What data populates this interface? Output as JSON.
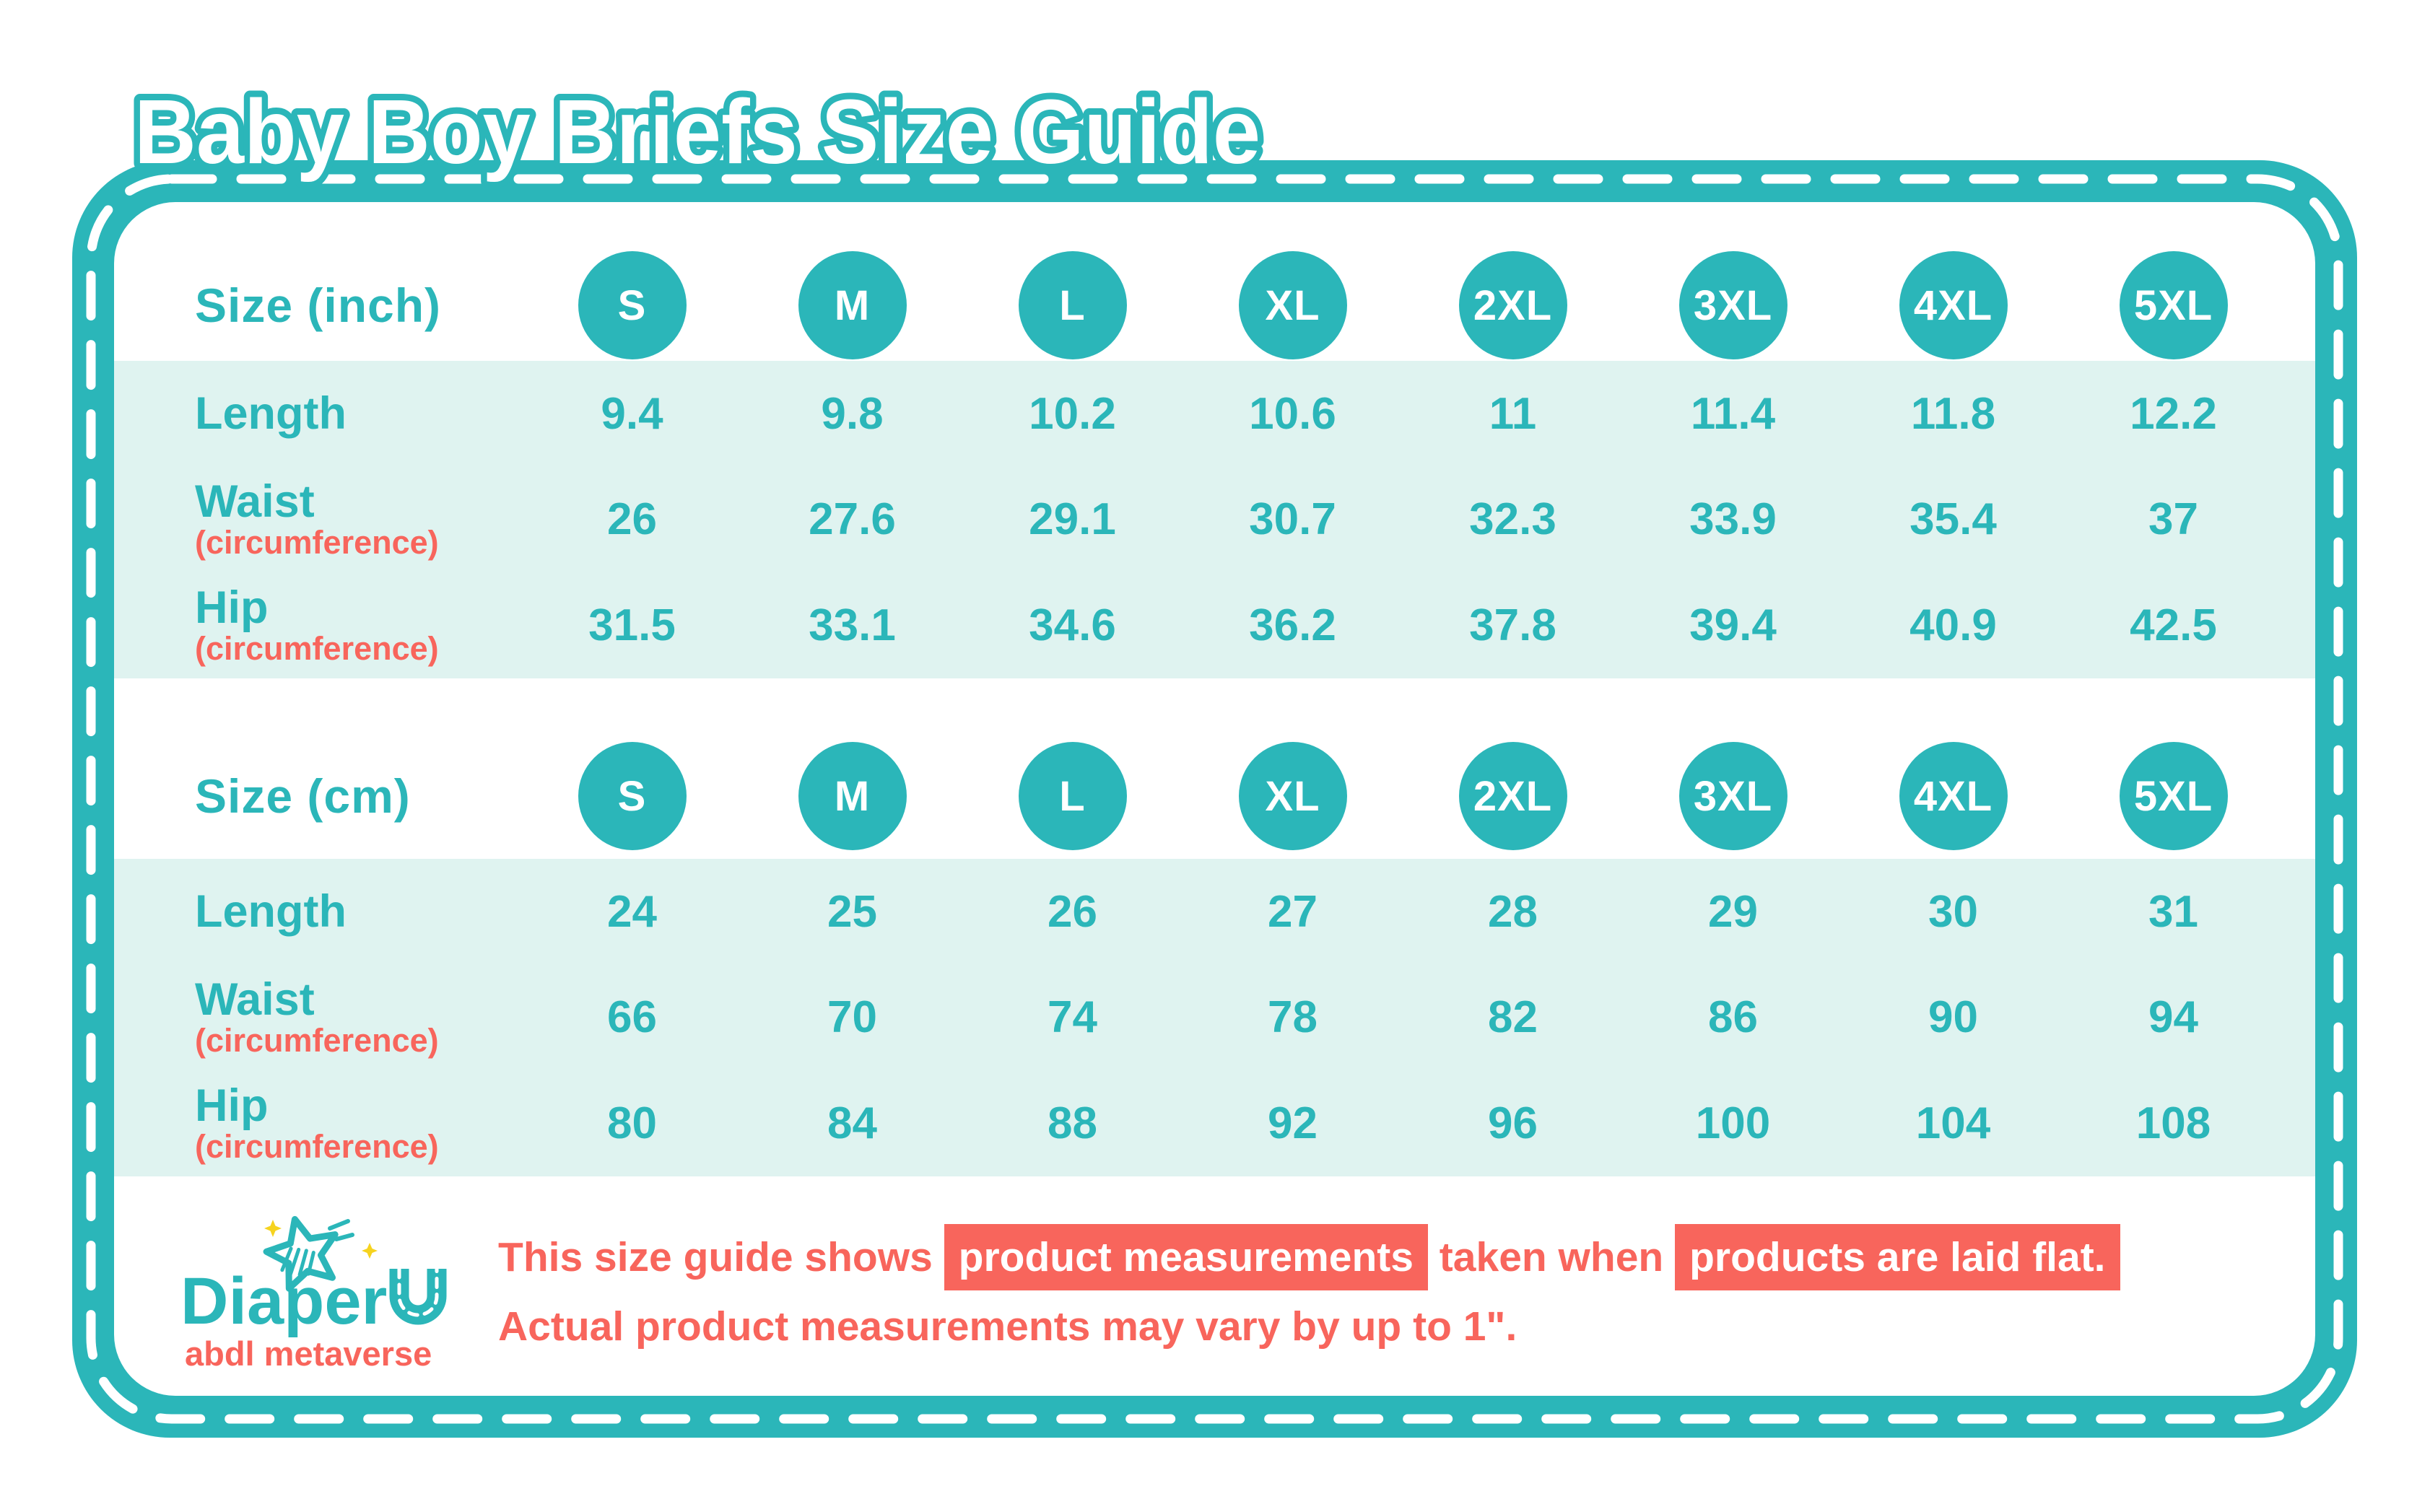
{
  "title": "Baby Boy Briefs Size Guide",
  "colors": {
    "teal": "#2bb6b9",
    "mint": "#dff3f0",
    "coral": "#f8655c",
    "yellow": "#f6d31f",
    "white": "#ffffff"
  },
  "chart_data": [
    {
      "type": "table",
      "unit_label": "Size (inch)",
      "sizes": [
        "S",
        "M",
        "L",
        "XL",
        "2XL",
        "3XL",
        "4XL",
        "5XL"
      ],
      "rows": [
        {
          "label": "Length",
          "sublabel": "",
          "values": [
            "9.4",
            "9.8",
            "10.2",
            "10.6",
            "11",
            "11.4",
            "11.8",
            "12.2"
          ]
        },
        {
          "label": "Waist",
          "sublabel": "(circumference)",
          "values": [
            "26",
            "27.6",
            "29.1",
            "30.7",
            "32.3",
            "33.9",
            "35.4",
            "37"
          ]
        },
        {
          "label": "Hip",
          "sublabel": "(circumference)",
          "values": [
            "31.5",
            "33.1",
            "34.6",
            "36.2",
            "37.8",
            "39.4",
            "40.9",
            "42.5"
          ]
        }
      ]
    },
    {
      "type": "table",
      "unit_label": "Size (cm)",
      "sizes": [
        "S",
        "M",
        "L",
        "XL",
        "2XL",
        "3XL",
        "4XL",
        "5XL"
      ],
      "rows": [
        {
          "label": "Length",
          "sublabel": "",
          "values": [
            "24",
            "25",
            "26",
            "27",
            "28",
            "29",
            "30",
            "31"
          ]
        },
        {
          "label": "Waist",
          "sublabel": "(circumference)",
          "values": [
            "66",
            "70",
            "74",
            "78",
            "82",
            "86",
            "90",
            "94"
          ]
        },
        {
          "label": "Hip",
          "sublabel": "(circumference)",
          "values": [
            "80",
            "84",
            "88",
            "92",
            "96",
            "100",
            "104",
            "108"
          ]
        }
      ]
    }
  ],
  "logo": {
    "brand": "Diaper",
    "brand_suffix": "U",
    "tagline": "abdl metaverse"
  },
  "disclaimer": {
    "lines": [
      {
        "segments": [
          {
            "text": "This size guide shows ",
            "highlight": false
          },
          {
            "text": "product measurements",
            "highlight": true
          },
          {
            "text": " taken when ",
            "highlight": false
          },
          {
            "text": "products are laid flat.",
            "highlight": true
          }
        ]
      },
      {
        "segments": [
          {
            "text": "Actual product measurements may vary by up to 1\".",
            "highlight": false
          }
        ]
      }
    ]
  }
}
